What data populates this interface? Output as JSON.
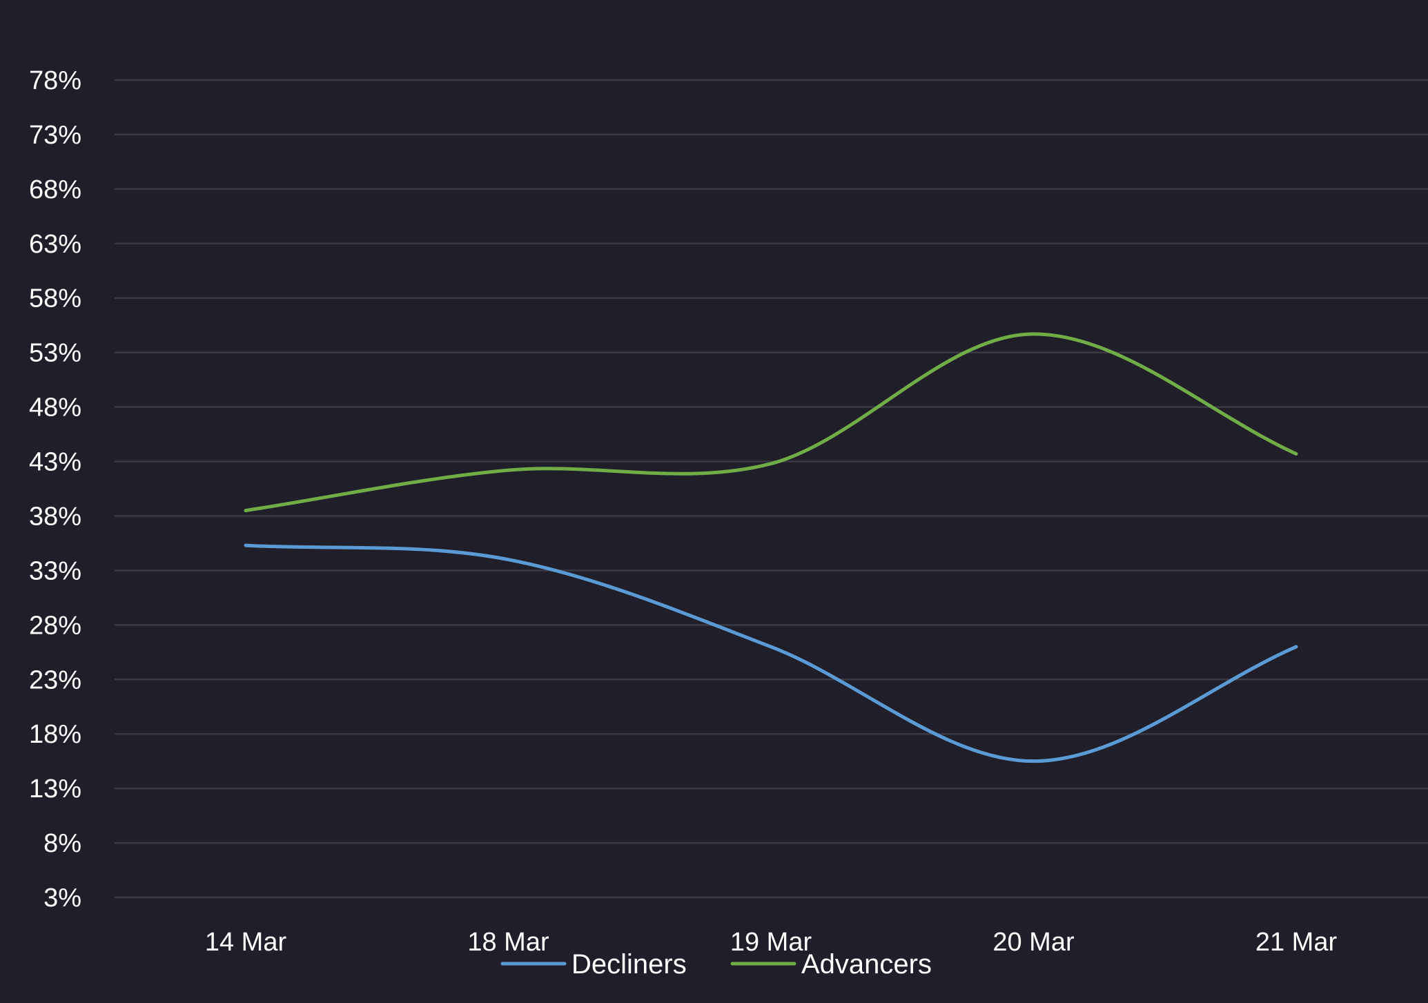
{
  "chart_data": {
    "type": "line",
    "categories": [
      "14 Mar",
      "18 Mar",
      "19 Mar",
      "20 Mar",
      "21 Mar"
    ],
    "series": [
      {
        "name": "Decliners",
        "color": "#5b9bd5",
        "values": [
          35.3,
          34.0,
          26.0,
          15.5,
          26.0
        ]
      },
      {
        "name": "Advancers",
        "color": "#70ad47",
        "values": [
          38.5,
          42.2,
          42.8,
          54.7,
          43.7
        ]
      }
    ],
    "y_ticks": [
      "3%",
      "8%",
      "13%",
      "18%",
      "23%",
      "28%",
      "33%",
      "38%",
      "43%",
      "48%",
      "53%",
      "58%",
      "63%",
      "68%",
      "73%",
      "78%"
    ],
    "ylim": [
      3,
      78
    ],
    "grid": true,
    "legend_position": "bottom",
    "title": "",
    "xlabel": "",
    "ylabel": "",
    "background_color": "#1f1e29",
    "text_color": "#ffffff",
    "grid_color": "#3b3a44"
  }
}
